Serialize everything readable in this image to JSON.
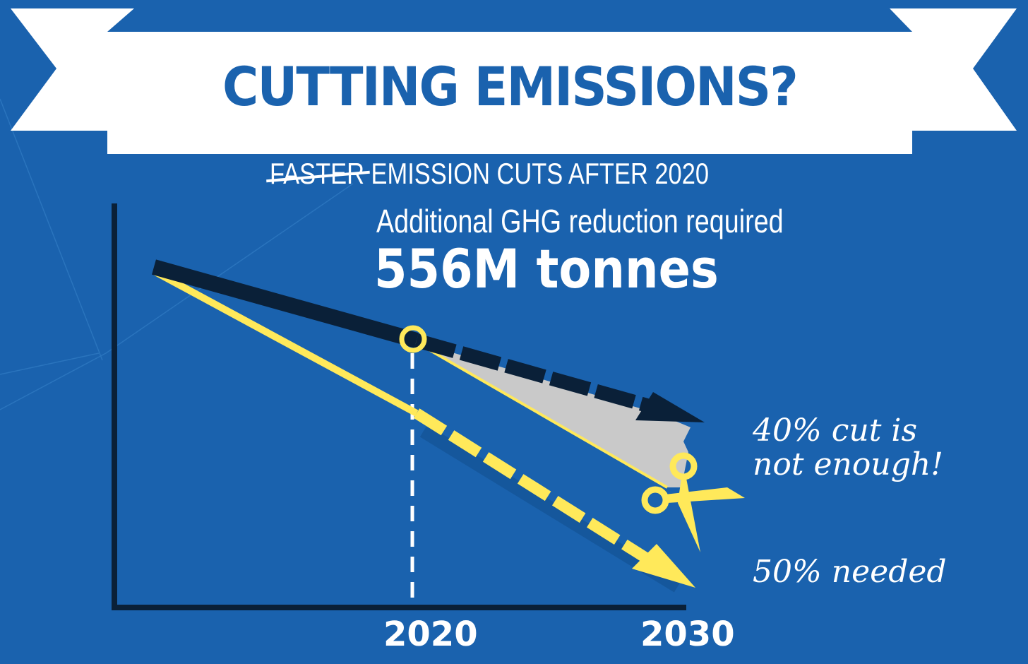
{
  "title": "CUTTING EMISSIONS?",
  "subtitle": {
    "struck_word": "FASTER",
    "text": "EMISSION CUTS AFTER 2020"
  },
  "reduction_label": "Additional GHG reduction required",
  "reduction_value": "556M tonnes",
  "annotations": {
    "forty": "40% cut is not enough!",
    "fifty": "50% needed"
  },
  "x_labels": [
    "2020",
    "2030"
  ],
  "colors": {
    "background": "#1a62ae",
    "banner": "#ffffff",
    "current_path": "#0a2038",
    "needed_path": "#ffe95a",
    "gap": "#c8c8c8"
  },
  "icons": [
    "scissors-icon",
    "milestone-circle-icon"
  ]
}
